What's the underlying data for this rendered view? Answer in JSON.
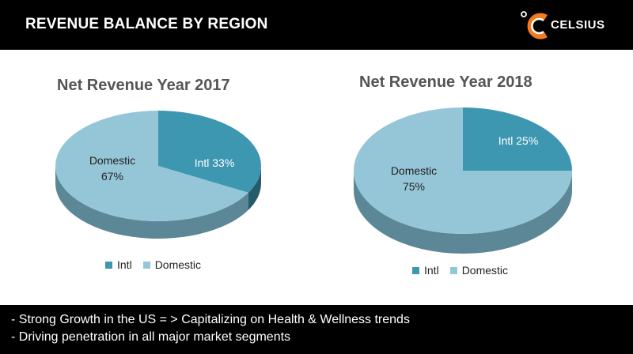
{
  "header": {
    "title": "REVENUE BALANCE BY REGION",
    "logo_text": "CELSIUS"
  },
  "colors": {
    "intl": "#3e97b0",
    "domestic": "#95c6d8",
    "intl_side": "#255b6b",
    "domestic_side": "#5b8797",
    "header_bg": "#000000"
  },
  "chart_data": [
    {
      "type": "pie",
      "title": "Net Revenue Year 2017",
      "slices": [
        {
          "name": "Intl",
          "value": 33,
          "label": "Intl 33%"
        },
        {
          "name": "Domestic",
          "value": 67,
          "label_line1": "Domestic",
          "label_line2": "67%"
        }
      ],
      "legend": [
        "Intl",
        "Domestic"
      ]
    },
    {
      "type": "pie",
      "title": "Net Revenue Year 2018",
      "slices": [
        {
          "name": "Intl",
          "value": 25,
          "label": "Intl 25%"
        },
        {
          "name": "Domestic",
          "value": 75,
          "label_line1": "Domestic",
          "label_line2": "75%"
        }
      ],
      "legend": [
        "Intl",
        "Domestic"
      ]
    }
  ],
  "footer": {
    "bullets": [
      "- Strong Growth in the US = > Capitalizing on Health & Wellness trends",
      "- Driving penetration in all major market segments"
    ]
  }
}
